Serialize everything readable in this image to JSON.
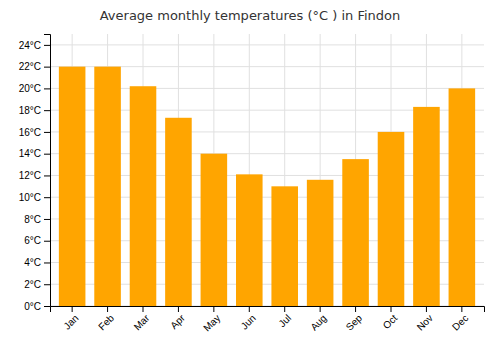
{
  "chart_data": {
    "type": "bar",
    "title": "Average monthly temperatures (°C ) in Findon",
    "categories": [
      "Jan",
      "Feb",
      "Mar",
      "Apr",
      "May",
      "Jun",
      "Jul",
      "Aug",
      "Sep",
      "Oct",
      "Nov",
      "Dec"
    ],
    "values": [
      22,
      22,
      20.2,
      17.3,
      14.0,
      12.1,
      11.0,
      11.6,
      13.5,
      16.0,
      18.3,
      20.0
    ],
    "color": "#FFA500",
    "ylim": [
      0,
      25
    ],
    "yticks": [
      {
        "value": 0,
        "label": "0°C"
      },
      {
        "value": 2,
        "label": "2°C"
      },
      {
        "value": 4,
        "label": "4°C"
      },
      {
        "value": 6,
        "label": "6°C"
      },
      {
        "value": 8,
        "label": "8°C"
      },
      {
        "value": 10,
        "label": "10°C"
      },
      {
        "value": 12,
        "label": "12°C"
      },
      {
        "value": 14,
        "label": "14°C"
      },
      {
        "value": 16,
        "label": "16°C"
      },
      {
        "value": 18,
        "label": "18°C"
      },
      {
        "value": 20,
        "label": "20°C"
      },
      {
        "value": 22,
        "label": "22°C"
      },
      {
        "value": 24,
        "label": "24°C"
      }
    ],
    "grid": true
  }
}
